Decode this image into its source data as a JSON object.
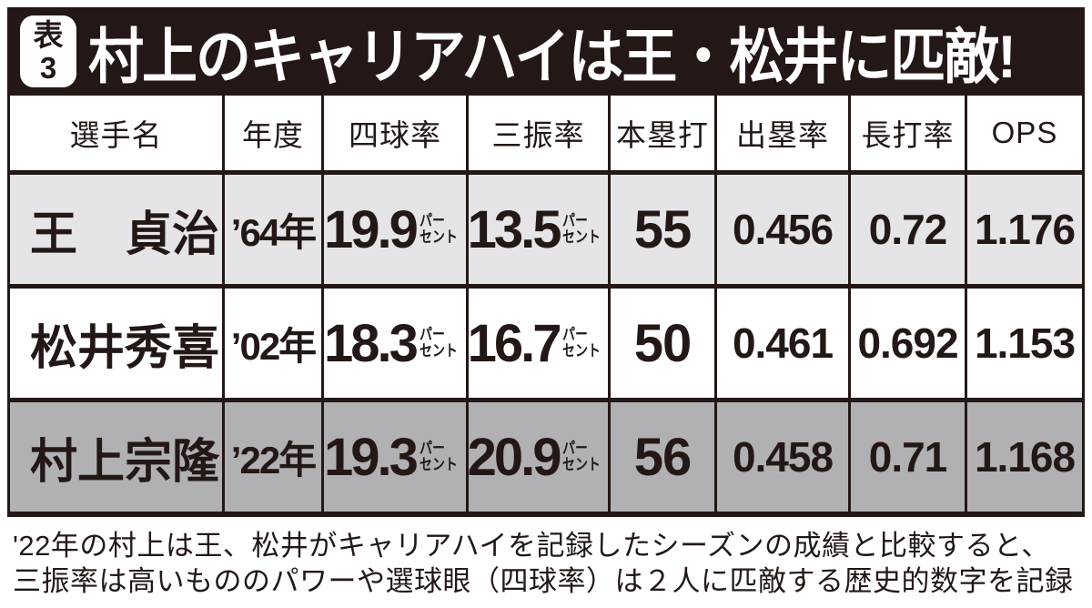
{
  "badge": {
    "line1": "表",
    "line2": "3"
  },
  "title": "村上のキャリアハイは王・松井に匹敵!",
  "table": {
    "headers": {
      "player": "選手名",
      "year": "年度",
      "bb_rate": "四球率",
      "k_rate": "三振率",
      "hr": "本塁打",
      "obp": "出塁率",
      "slg": "長打率",
      "ops": "OPS"
    },
    "percent_unit": {
      "top": "パー",
      "bottom": "セント"
    },
    "rows": [
      {
        "name": "王　貞治",
        "year": "’64年",
        "bb_rate": "19.9",
        "k_rate": "13.5",
        "hr": "55",
        "obp": "0.456",
        "slg": "0.72",
        "ops": "1.176"
      },
      {
        "name": "松井秀喜",
        "year": "’02年",
        "bb_rate": "18.3",
        "k_rate": "16.7",
        "hr": "50",
        "obp": "0.461",
        "slg": "0.692",
        "ops": "1.153"
      },
      {
        "name": "村上宗隆",
        "year": "’22年",
        "bb_rate": "19.3",
        "k_rate": "20.9",
        "hr": "56",
        "obp": "0.458",
        "slg": "0.71",
        "ops": "1.168"
      }
    ]
  },
  "caption": {
    "line1": "'22年の村上は王、松井がキャリアハイを記録したシーズンの成績と比較すると、",
    "line2": "三振率は高いもののパワーや選球眼（四球率）は２人に匹敵する歴史的数字を記録"
  },
  "colors": {
    "ink": "#231815",
    "row_light_gray": "#e5e4e6",
    "row_white": "#ffffff",
    "row_dark_gray": "#b1b0b2",
    "title_text": "#ffffff"
  }
}
